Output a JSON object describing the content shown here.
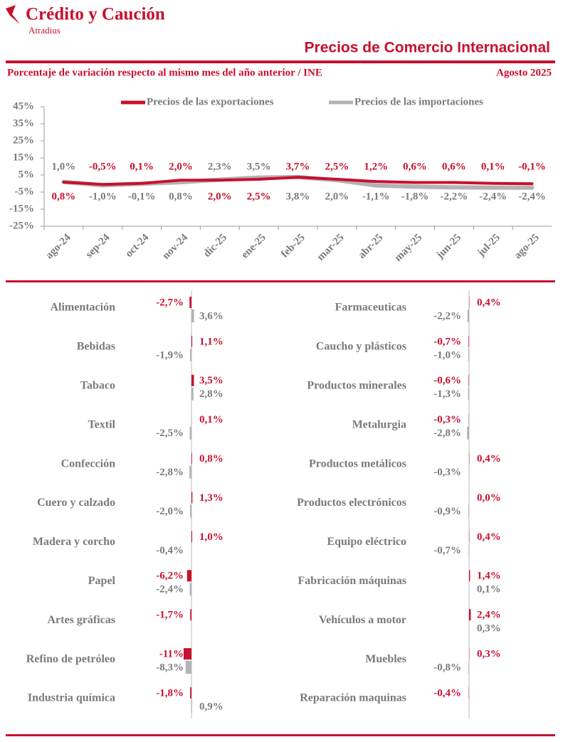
{
  "header": {
    "brand": "Crédito y Caución",
    "sub_brand": "Atradius",
    "title": "Precios de Comercio Internacional",
    "subtitle": "Porcentaje de variación respecto al mismo mes del año anterior / INE",
    "date": "Agosto 2025"
  },
  "chart_data": [
    {
      "type": "line",
      "categories": [
        "ago-24",
        "sep-24",
        "oct-24",
        "nov-24",
        "dic-25",
        "ene-25",
        "feb-25",
        "mar-25",
        "abr-25",
        "may-25",
        "jun-25",
        "jul-25",
        "ago-25"
      ],
      "series": [
        {
          "name": "Precios de las exportaciones",
          "color": "#c8102e",
          "values": [
            0.8,
            -0.5,
            0.1,
            2.0,
            2.0,
            2.5,
            3.7,
            2.5,
            1.2,
            0.6,
            0.6,
            0.1,
            -0.1
          ],
          "value_labels": [
            "0,8%",
            "-0,5%",
            "0,1%",
            "2,0%",
            "2,0%",
            "2,5%",
            "3,7%",
            "2,5%",
            "1,2%",
            "0,6%",
            "0,6%",
            "0,1%",
            "-0,1%"
          ]
        },
        {
          "name": "Precios de las importaciones",
          "color": "#b3b3b3",
          "values": [
            1.0,
            -1.0,
            -0.1,
            0.8,
            2.3,
            3.5,
            3.8,
            2.0,
            -1.1,
            -1.8,
            -2.2,
            -2.4,
            -2.4
          ],
          "value_labels": [
            "1,0%",
            "-1,0%",
            "-0,1%",
            "0,8%",
            "2,3%",
            "3,5%",
            "3,8%",
            "2,0%",
            "-1,1%",
            "-1,8%",
            "-2,2%",
            "-2,4%",
            "-2,4%"
          ]
        }
      ],
      "ylim": [
        -25,
        45
      ],
      "yticks": [
        {
          "value": -25,
          "label": "-25%"
        },
        {
          "value": -15,
          "label": "-15%"
        },
        {
          "value": -5,
          "label": "-5%"
        },
        {
          "value": 5,
          "label": "5%"
        },
        {
          "value": 15,
          "label": "15%"
        },
        {
          "value": 25,
          "label": "25%"
        },
        {
          "value": 35,
          "label": "35%"
        },
        {
          "value": 45,
          "label": "45%"
        }
      ],
      "grid": false,
      "legend": "top"
    },
    {
      "type": "bar",
      "orientation": "horizontal",
      "categories": [
        "Alimentación",
        "Bebidas",
        "Tabaco",
        "Textil",
        "Confección",
        "Cuero y calzado",
        "Madera y corcho",
        "Papel",
        "Artes gráficas",
        "Refino de petróleo",
        "Industria química"
      ],
      "series": [
        {
          "color": "#c8102e",
          "values": [
            -2.7,
            1.1,
            3.5,
            0.1,
            0.8,
            1.3,
            1.0,
            -6.2,
            -1.7,
            -11,
            -1.8
          ],
          "value_labels": [
            "-2,7%",
            "1,1%",
            "3,5%",
            "0,1%",
            "0,8%",
            "1,3%",
            "1,0%",
            "-6,2%",
            "-1,7%",
            "-11%",
            "-1,8%"
          ]
        },
        {
          "color": "#b3b3b3",
          "values": [
            3.6,
            -1.9,
            2.8,
            -2.5,
            -2.8,
            -2.0,
            -0.4,
            -2.4,
            null,
            -8.3,
            0.9
          ],
          "value_labels": [
            "3,6%",
            "-1,9%",
            "2,8%",
            "-2,5%",
            "-2,8%",
            "-2,0%",
            "-0,4%",
            "-2,4%",
            null,
            "-8,3%",
            "0,9%"
          ]
        }
      ]
    },
    {
      "type": "bar",
      "orientation": "horizontal",
      "categories": [
        "Farmaceuticas",
        "Caucho y plásticos",
        "Productos minerales",
        "Metalurgia",
        "Productos metálicos",
        "Productos electrónicos",
        "Equipo eléctrico",
        "Fabricación máquinas",
        "Vehículos a motor",
        "Muebles",
        "Reparación maquinas"
      ],
      "series": [
        {
          "color": "#c8102e",
          "values": [
            0.4,
            -0.7,
            -0.6,
            -0.3,
            0.4,
            0.0,
            0.4,
            1.4,
            2.4,
            0.3,
            -0.4
          ],
          "value_labels": [
            "0,4%",
            "-0,7%",
            "-0,6%",
            "-0,3%",
            "0,4%",
            "0,0%",
            "0,4%",
            "1,4%",
            "2,4%",
            "0,3%",
            "-0,4%"
          ]
        },
        {
          "color": "#b3b3b3",
          "values": [
            -2.2,
            -1.0,
            -1.3,
            -2.8,
            -0.3,
            -0.9,
            -0.7,
            0.1,
            0.3,
            -0.8,
            null
          ],
          "value_labels": [
            "-2,2%",
            "-1,0%",
            "-1,3%",
            "-2,8%",
            "-0,3%",
            "-0,9%",
            "-0,7%",
            "0,1%",
            "0,3%",
            "-0,8%",
            null
          ]
        }
      ]
    }
  ]
}
